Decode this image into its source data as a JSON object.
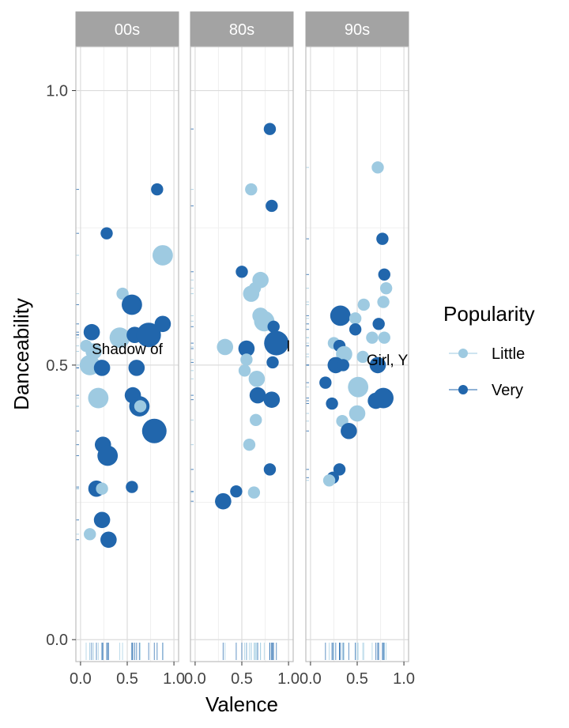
{
  "chart_data": {
    "type": "scatter",
    "xlabel": "Valence",
    "ylabel": "Danceability",
    "xlim": [
      -0.05,
      1.05
    ],
    "ylim": [
      -0.04,
      1.08
    ],
    "x_ticks": [
      "0.0",
      "0.5",
      "1.0"
    ],
    "y_ticks": [
      "0.0",
      "0.5",
      "1.0"
    ],
    "grid": true,
    "legend": {
      "title": "Popularity",
      "placement": "right",
      "entries": [
        {
          "name": "Little",
          "color": "#9ecae1"
        },
        {
          "name": "Very",
          "color": "#2166ac"
        }
      ]
    },
    "facets": [
      {
        "name": "00s",
        "annotation": "Shadow of",
        "annotation_at": [
          0.12,
          0.53
        ],
        "points": [
          {
            "x": 0.06,
            "y": 0.535,
            "group": "Little",
            "size": 2
          },
          {
            "x": 0.12,
            "y": 0.56,
            "group": "Very",
            "size": 3
          },
          {
            "x": 0.14,
            "y": 0.525,
            "group": "Little",
            "size": 3
          },
          {
            "x": 0.1,
            "y": 0.5,
            "group": "Little",
            "size": 4
          },
          {
            "x": 0.23,
            "y": 0.495,
            "group": "Very",
            "size": 3
          },
          {
            "x": 0.28,
            "y": 0.74,
            "group": "Very",
            "size": 2
          },
          {
            "x": 0.45,
            "y": 0.63,
            "group": "Little",
            "size": 2
          },
          {
            "x": 0.42,
            "y": 0.55,
            "group": "Little",
            "size": 4
          },
          {
            "x": 0.55,
            "y": 0.61,
            "group": "Very",
            "size": 4
          },
          {
            "x": 0.58,
            "y": 0.555,
            "group": "Very",
            "size": 3
          },
          {
            "x": 0.73,
            "y": 0.555,
            "group": "Very",
            "size": 5
          },
          {
            "x": 0.88,
            "y": 0.7,
            "group": "Little",
            "size": 4
          },
          {
            "x": 0.82,
            "y": 0.82,
            "group": "Very",
            "size": 2
          },
          {
            "x": 0.88,
            "y": 0.575,
            "group": "Very",
            "size": 3
          },
          {
            "x": 0.6,
            "y": 0.495,
            "group": "Very",
            "size": 3
          },
          {
            "x": 0.56,
            "y": 0.445,
            "group": "Very",
            "size": 3
          },
          {
            "x": 0.63,
            "y": 0.425,
            "group": "Very",
            "size": 4
          },
          {
            "x": 0.64,
            "y": 0.425,
            "group": "Little",
            "size": 2
          },
          {
            "x": 0.19,
            "y": 0.44,
            "group": "Little",
            "size": 4
          },
          {
            "x": 0.79,
            "y": 0.38,
            "group": "Very",
            "size": 5
          },
          {
            "x": 0.24,
            "y": 0.355,
            "group": "Very",
            "size": 3
          },
          {
            "x": 0.29,
            "y": 0.335,
            "group": "Very",
            "size": 4
          },
          {
            "x": 0.17,
            "y": 0.275,
            "group": "Very",
            "size": 3
          },
          {
            "x": 0.23,
            "y": 0.275,
            "group": "Little",
            "size": 2
          },
          {
            "x": 0.55,
            "y": 0.278,
            "group": "Very",
            "size": 2
          },
          {
            "x": 0.23,
            "y": 0.218,
            "group": "Very",
            "size": 3
          },
          {
            "x": 0.1,
            "y": 0.192,
            "group": "Little",
            "size": 2
          },
          {
            "x": 0.3,
            "y": 0.182,
            "group": "Very",
            "size": 3
          }
        ]
      },
      {
        "name": "80s",
        "annotation": "l",
        "annotation_at": [
          0.98,
          0.535
        ],
        "points": [
          {
            "x": 0.8,
            "y": 0.93,
            "group": "Very",
            "size": 2
          },
          {
            "x": 0.6,
            "y": 0.82,
            "group": "Little",
            "size": 2
          },
          {
            "x": 0.82,
            "y": 0.79,
            "group": "Very",
            "size": 2
          },
          {
            "x": 0.5,
            "y": 0.67,
            "group": "Very",
            "size": 2
          },
          {
            "x": 0.7,
            "y": 0.655,
            "group": "Little",
            "size": 3
          },
          {
            "x": 0.64,
            "y": 0.64,
            "group": "Little",
            "size": 2
          },
          {
            "x": 0.6,
            "y": 0.63,
            "group": "Little",
            "size": 3
          },
          {
            "x": 0.7,
            "y": 0.59,
            "group": "Little",
            "size": 3
          },
          {
            "x": 0.74,
            "y": 0.58,
            "group": "Little",
            "size": 4
          },
          {
            "x": 0.84,
            "y": 0.57,
            "group": "Very",
            "size": 2
          },
          {
            "x": 0.87,
            "y": 0.54,
            "group": "Very",
            "size": 5
          },
          {
            "x": 0.32,
            "y": 0.533,
            "group": "Little",
            "size": 3
          },
          {
            "x": 0.55,
            "y": 0.53,
            "group": "Very",
            "size": 3
          },
          {
            "x": 0.55,
            "y": 0.51,
            "group": "Little",
            "size": 2
          },
          {
            "x": 0.83,
            "y": 0.505,
            "group": "Very",
            "size": 2
          },
          {
            "x": 0.53,
            "y": 0.49,
            "group": "Little",
            "size": 2
          },
          {
            "x": 0.66,
            "y": 0.475,
            "group": "Little",
            "size": 3
          },
          {
            "x": 0.67,
            "y": 0.445,
            "group": "Very",
            "size": 3
          },
          {
            "x": 0.82,
            "y": 0.437,
            "group": "Very",
            "size": 3
          },
          {
            "x": 0.65,
            "y": 0.4,
            "group": "Little",
            "size": 2
          },
          {
            "x": 0.58,
            "y": 0.355,
            "group": "Little",
            "size": 2
          },
          {
            "x": 0.8,
            "y": 0.31,
            "group": "Very",
            "size": 2
          },
          {
            "x": 0.44,
            "y": 0.27,
            "group": "Very",
            "size": 2
          },
          {
            "x": 0.63,
            "y": 0.268,
            "group": "Little",
            "size": 2
          },
          {
            "x": 0.3,
            "y": 0.252,
            "group": "Very",
            "size": 3
          }
        ]
      },
      {
        "name": "90s",
        "annotation": "Girl, Y",
        "annotation_at": [
          0.6,
          0.51
        ],
        "points": [
          {
            "x": 0.72,
            "y": 0.86,
            "group": "Little",
            "size": 2
          },
          {
            "x": 0.77,
            "y": 0.73,
            "group": "Very",
            "size": 2
          },
          {
            "x": 0.79,
            "y": 0.665,
            "group": "Very",
            "size": 2
          },
          {
            "x": 0.81,
            "y": 0.64,
            "group": "Little",
            "size": 2
          },
          {
            "x": 0.78,
            "y": 0.615,
            "group": "Little",
            "size": 2
          },
          {
            "x": 0.57,
            "y": 0.61,
            "group": "Little",
            "size": 2
          },
          {
            "x": 0.32,
            "y": 0.59,
            "group": "Very",
            "size": 4
          },
          {
            "x": 0.48,
            "y": 0.585,
            "group": "Little",
            "size": 2
          },
          {
            "x": 0.73,
            "y": 0.575,
            "group": "Very",
            "size": 2
          },
          {
            "x": 0.48,
            "y": 0.565,
            "group": "Very",
            "size": 2
          },
          {
            "x": 0.66,
            "y": 0.55,
            "group": "Little",
            "size": 2
          },
          {
            "x": 0.79,
            "y": 0.55,
            "group": "Little",
            "size": 2
          },
          {
            "x": 0.25,
            "y": 0.54,
            "group": "Little",
            "size": 2
          },
          {
            "x": 0.31,
            "y": 0.535,
            "group": "Very",
            "size": 2
          },
          {
            "x": 0.36,
            "y": 0.52,
            "group": "Little",
            "size": 3
          },
          {
            "x": 0.56,
            "y": 0.515,
            "group": "Little",
            "size": 2
          },
          {
            "x": 0.27,
            "y": 0.5,
            "group": "Very",
            "size": 3
          },
          {
            "x": 0.35,
            "y": 0.5,
            "group": "Very",
            "size": 2
          },
          {
            "x": 0.72,
            "y": 0.5,
            "group": "Very",
            "size": 3
          },
          {
            "x": 0.16,
            "y": 0.468,
            "group": "Very",
            "size": 2
          },
          {
            "x": 0.51,
            "y": 0.46,
            "group": "Little",
            "size": 4
          },
          {
            "x": 0.78,
            "y": 0.44,
            "group": "Very",
            "size": 4
          },
          {
            "x": 0.7,
            "y": 0.435,
            "group": "Very",
            "size": 3
          },
          {
            "x": 0.23,
            "y": 0.43,
            "group": "Very",
            "size": 2
          },
          {
            "x": 0.5,
            "y": 0.412,
            "group": "Little",
            "size": 3
          },
          {
            "x": 0.34,
            "y": 0.398,
            "group": "Little",
            "size": 2
          },
          {
            "x": 0.41,
            "y": 0.38,
            "group": "Very",
            "size": 3
          },
          {
            "x": 0.31,
            "y": 0.31,
            "group": "Very",
            "size": 2
          },
          {
            "x": 0.24,
            "y": 0.295,
            "group": "Very",
            "size": 2
          },
          {
            "x": 0.2,
            "y": 0.29,
            "group": "Little",
            "size": 2
          }
        ]
      }
    ]
  }
}
